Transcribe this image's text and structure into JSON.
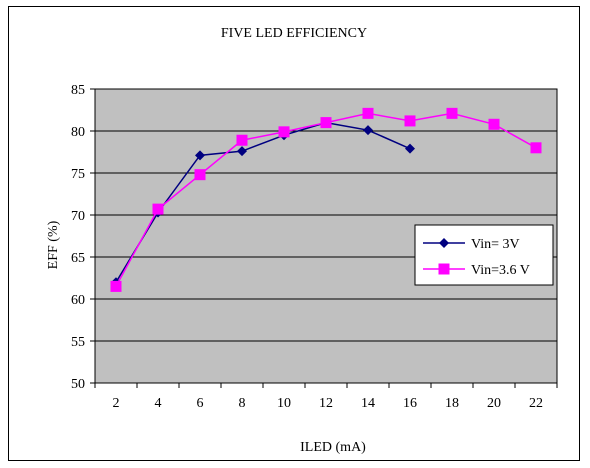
{
  "chart_data": {
    "type": "line",
    "title": "FIVE LED EFFICIENCY",
    "xlabel": "ILED (mA)",
    "ylabel": "EFF (%)",
    "xlim": [
      1,
      23
    ],
    "ylim": [
      50,
      85
    ],
    "x_ticks": [
      "2",
      "4",
      "6",
      "8",
      "10",
      "12",
      "14",
      "16",
      "18",
      "20",
      "22"
    ],
    "y_ticks": [
      "50",
      "55",
      "60",
      "65",
      "70",
      "75",
      "80",
      "85"
    ],
    "grid": "horizontal",
    "plot_background": "#c0c0c0",
    "legend_position": "right",
    "series": [
      {
        "name": "Vin= 3V",
        "color": "#000080",
        "marker": "diamond",
        "x": [
          2,
          4,
          6,
          8,
          10,
          12,
          14,
          16
        ],
        "y": [
          62,
          70.3,
          77.1,
          77.6,
          79.5,
          81,
          80.1,
          77.9
        ]
      },
      {
        "name": "Vin=3.6 V",
        "color": "#ff00ff",
        "marker": "square",
        "x": [
          2,
          4,
          6,
          8,
          10,
          12,
          14,
          16,
          18,
          20,
          22
        ],
        "y": [
          61.5,
          70.7,
          74.8,
          78.9,
          79.9,
          81,
          82.1,
          81.2,
          82.1,
          80.8,
          78
        ]
      }
    ]
  }
}
